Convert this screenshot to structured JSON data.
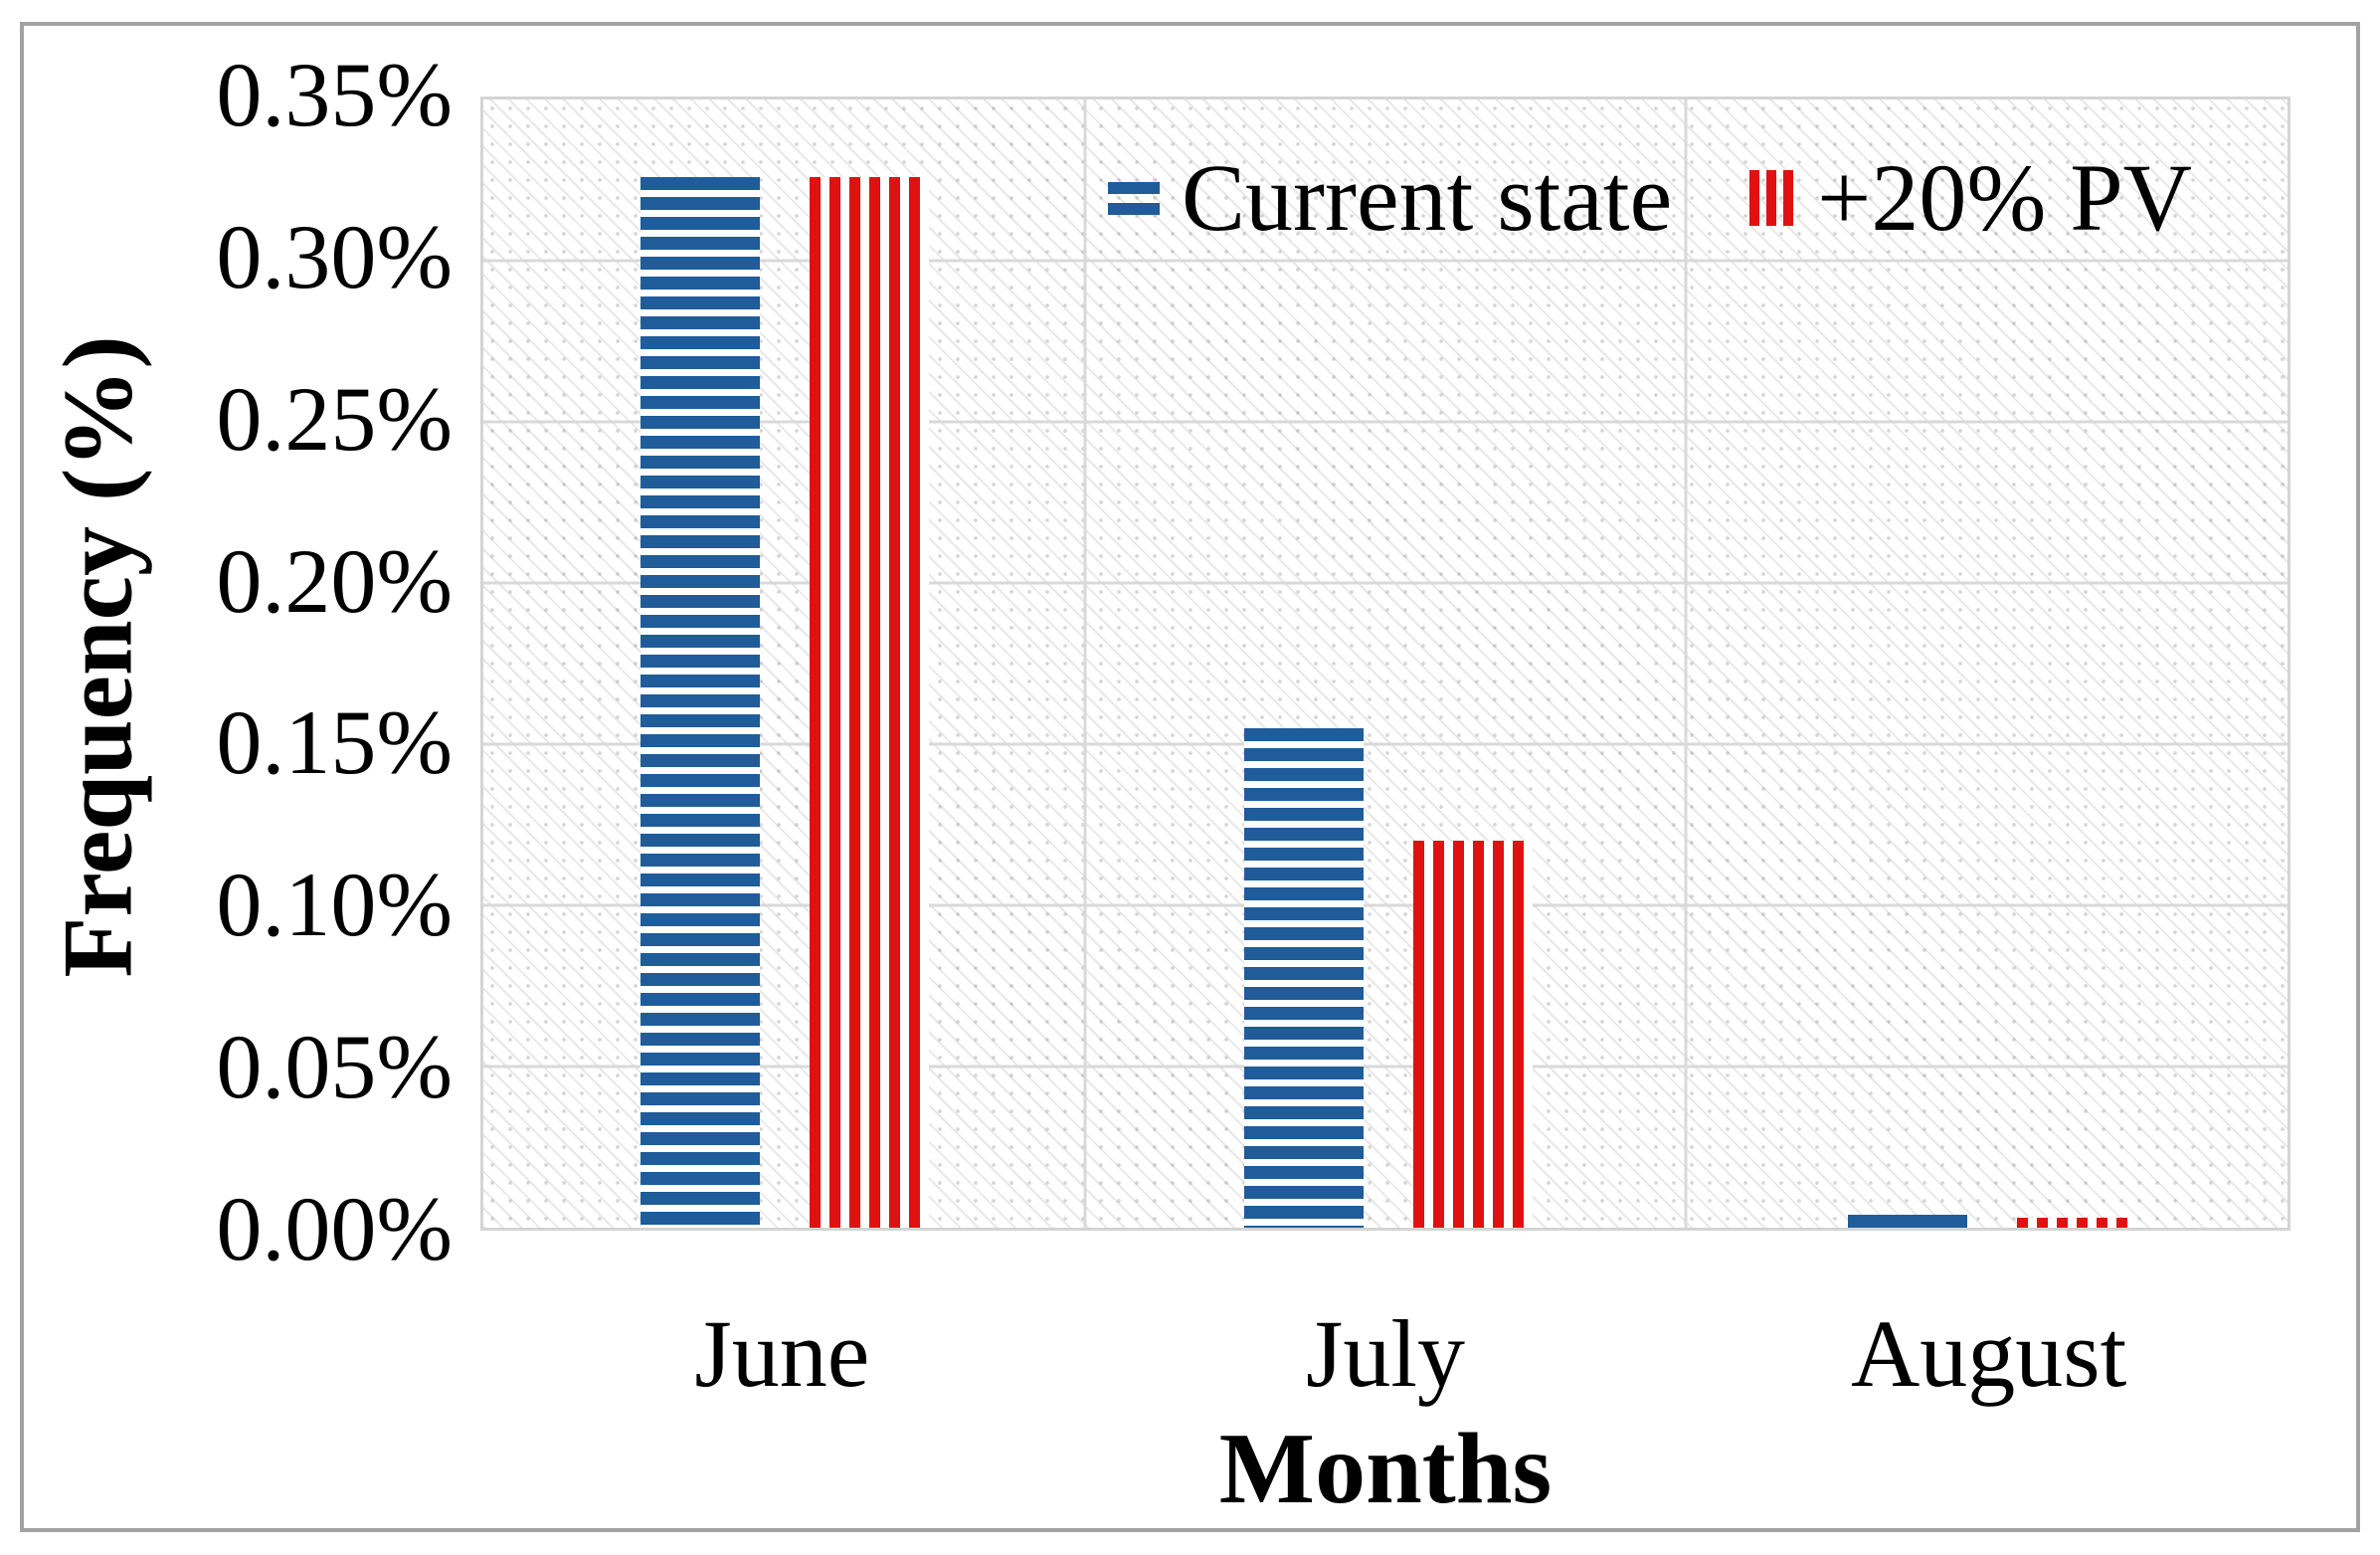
{
  "chart_data": {
    "type": "bar",
    "title": "",
    "categories": [
      "June",
      "July",
      "August"
    ],
    "series": [
      {
        "name": "Current state",
        "color": "#1F5C99",
        "pattern": "horizontal-stripes",
        "values": [
          0.326,
          0.155,
          0.004
        ]
      },
      {
        "name": "+20% PV",
        "color": "#E01111",
        "pattern": "vertical-stripes",
        "values": [
          0.326,
          0.12,
          0.003
        ]
      }
    ],
    "xlabel": "Months",
    "ylabel": "Frequency (%)",
    "ylim": [
      0,
      0.35
    ],
    "ytick_step": 0.05,
    "ytick_labels": [
      "0.35%",
      "0.30%",
      "0.25%",
      "0.20%",
      "0.15%",
      "0.10%",
      "0.05%",
      "0.00%"
    ],
    "grid": true,
    "legend_position": "top-inside",
    "gridline_color": "#D9D9D9",
    "plot_hatch": "light-downward-diagonal"
  }
}
